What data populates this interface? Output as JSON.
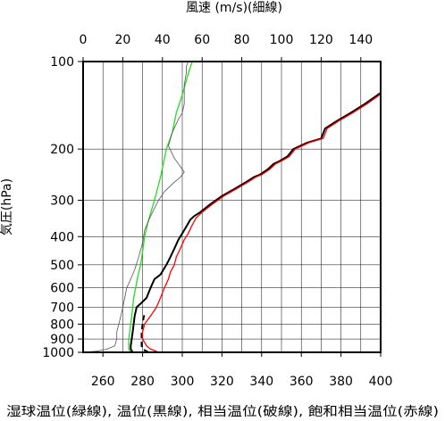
{
  "chart_data": {
    "type": "line",
    "top_axis_label": "風速 (m/s)(細線)",
    "ylabel": "気圧(hPa)",
    "bottom_axis_label": "湿球温位(緑線), 温位(黒線), 相当温位(破線), 飽和相当温位(赤線)",
    "y_scale": "log",
    "ylim": [
      1000,
      100
    ],
    "y_ticks": [
      100,
      200,
      300,
      400,
      500,
      600,
      700,
      800,
      900,
      1000
    ],
    "y_tick_labels": [
      "100",
      "200",
      "300",
      "400",
      "500",
      "600",
      "700",
      "800",
      "900",
      "1000"
    ],
    "x_bottom_lim": [
      250,
      400
    ],
    "x_bottom_ticks": [
      260,
      280,
      300,
      320,
      340,
      360,
      380,
      400
    ],
    "x_bottom_tick_labels": [
      "260",
      "280",
      "300",
      "320",
      "340",
      "360",
      "380",
      "400"
    ],
    "x_top_lim": [
      0,
      150
    ],
    "x_top_ticks": [
      0,
      20,
      40,
      60,
      80,
      100,
      120,
      140
    ],
    "x_top_tick_labels": [
      "0",
      "20",
      "40",
      "60",
      "80",
      "100",
      "120",
      "140"
    ],
    "grid": true,
    "series": [
      {
        "key": "wet_bulb_potential_temperature",
        "axis": "bottom",
        "color": "#22dd22",
        "stroke": "solid",
        "points": [
          [
            274,
            1000
          ],
          [
            273,
            975
          ],
          [
            273,
            950
          ],
          [
            273,
            900
          ],
          [
            273.5,
            850
          ],
          [
            274,
            800
          ],
          [
            274.5,
            750
          ],
          [
            275,
            700
          ],
          [
            275.5,
            650
          ],
          [
            276.5,
            600
          ],
          [
            277.5,
            550
          ],
          [
            279,
            500
          ],
          [
            280,
            450
          ],
          [
            281,
            400
          ],
          [
            283,
            350
          ],
          [
            286,
            300
          ],
          [
            289,
            250
          ],
          [
            292,
            200
          ],
          [
            295,
            175
          ],
          [
            297,
            150
          ],
          [
            298.5,
            140
          ],
          [
            300,
            130
          ],
          [
            301.5,
            120
          ],
          [
            303,
            110
          ],
          [
            305,
            100
          ]
        ]
      },
      {
        "key": "potential_temperature",
        "axis": "bottom",
        "color": "#000000",
        "stroke": "solid",
        "points": [
          [
            275,
            1000
          ],
          [
            274,
            975
          ],
          [
            274,
            950
          ],
          [
            274.5,
            900
          ],
          [
            275,
            850
          ],
          [
            276,
            750
          ],
          [
            277,
            700
          ],
          [
            279,
            680
          ],
          [
            282,
            650
          ],
          [
            284,
            600
          ],
          [
            286,
            560
          ],
          [
            289,
            540
          ],
          [
            292,
            500
          ],
          [
            294,
            470
          ],
          [
            296,
            440
          ],
          [
            298,
            410
          ],
          [
            300,
            390
          ],
          [
            302,
            370
          ],
          [
            304,
            350
          ],
          [
            306,
            340
          ],
          [
            309,
            330
          ],
          [
            314,
            310
          ],
          [
            320,
            290
          ],
          [
            326,
            275
          ],
          [
            332,
            260
          ],
          [
            336,
            250
          ],
          [
            339,
            245
          ],
          [
            343,
            235
          ],
          [
            346,
            225
          ],
          [
            349,
            220
          ],
          [
            353,
            212
          ],
          [
            356,
            200
          ],
          [
            363,
            190
          ],
          [
            370,
            184
          ],
          [
            372,
            170
          ],
          [
            378,
            160
          ],
          [
            385,
            150
          ],
          [
            392,
            140
          ],
          [
            398,
            131
          ],
          [
            400,
            128
          ]
        ]
      },
      {
        "key": "equivalent_potential_temperature",
        "axis": "bottom",
        "color": "#000000",
        "stroke": "dashed",
        "points": [
          [
            283,
            1000
          ],
          [
            280,
            975
          ],
          [
            279.5,
            950
          ],
          [
            279.5,
            900
          ],
          [
            279.5,
            850
          ],
          [
            280,
            800
          ],
          [
            280.5,
            760
          ],
          [
            281,
            740
          ]
        ]
      },
      {
        "key": "saturated_equivalent_potential_temperature",
        "axis": "bottom",
        "color": "#ff0000",
        "stroke": "solid",
        "points": [
          [
            288,
            1000
          ],
          [
            284,
            975
          ],
          [
            282,
            950
          ],
          [
            280,
            900
          ],
          [
            280,
            850
          ],
          [
            281,
            800
          ],
          [
            284,
            750
          ],
          [
            287,
            700
          ],
          [
            289,
            650
          ],
          [
            291,
            600
          ],
          [
            293,
            560
          ],
          [
            294,
            530
          ],
          [
            296,
            500
          ],
          [
            297,
            470
          ],
          [
            299,
            440
          ],
          [
            301,
            410
          ],
          [
            303,
            390
          ],
          [
            305,
            365
          ],
          [
            307,
            345
          ],
          [
            310,
            330
          ],
          [
            315,
            310
          ],
          [
            321,
            290
          ],
          [
            327,
            275
          ],
          [
            333,
            260
          ],
          [
            337,
            250
          ],
          [
            340,
            245
          ],
          [
            344,
            235
          ],
          [
            347,
            225
          ],
          [
            350,
            220
          ],
          [
            354,
            212
          ],
          [
            357,
            200
          ],
          [
            364,
            190
          ],
          [
            371,
            184
          ],
          [
            373,
            170
          ],
          [
            379,
            160
          ],
          [
            386,
            150
          ],
          [
            393,
            140
          ],
          [
            399,
            131
          ],
          [
            400,
            129
          ]
        ]
      },
      {
        "key": "wind_speed",
        "axis": "top",
        "color": "#555555",
        "stroke": "thin",
        "points": [
          [
            0,
            1000
          ],
          [
            7,
            990
          ],
          [
            12,
            975
          ],
          [
            16,
            950
          ],
          [
            17,
            900
          ],
          [
            17,
            850
          ],
          [
            18,
            800
          ],
          [
            19,
            750
          ],
          [
            20,
            700
          ],
          [
            21,
            650
          ],
          [
            22,
            600
          ],
          [
            24,
            560
          ],
          [
            26,
            520
          ],
          [
            28,
            470
          ],
          [
            30,
            420
          ],
          [
            31,
            380
          ],
          [
            34,
            340
          ],
          [
            38,
            300
          ],
          [
            41,
            280
          ],
          [
            46,
            260
          ],
          [
            49,
            250
          ],
          [
            51,
            240
          ],
          [
            46,
            215
          ],
          [
            43,
            195
          ],
          [
            45,
            175
          ],
          [
            48,
            158
          ],
          [
            50,
            150
          ],
          [
            51,
            140
          ],
          [
            51,
            130
          ],
          [
            51,
            120
          ],
          [
            52,
            110
          ],
          [
            52,
            104
          ],
          [
            53,
            100
          ]
        ]
      }
    ]
  }
}
